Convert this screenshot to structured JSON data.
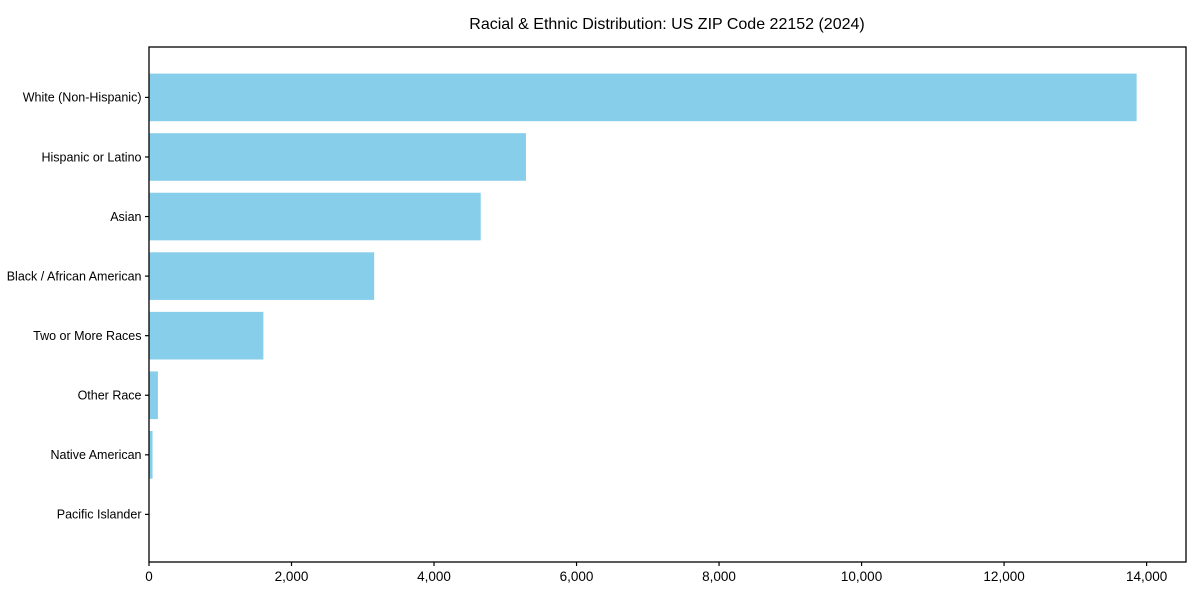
{
  "chart_data": {
    "type": "bar",
    "orientation": "horizontal",
    "title": "Racial & Ethnic Distribution: US ZIP Code 22152 (2024)",
    "categories": [
      "White (Non-Hispanic)",
      "Hispanic or Latino",
      "Asian",
      "Black / African American",
      "Two or More Races",
      "Other Race",
      "Native American",
      "Pacific Islander"
    ],
    "values": [
      13860,
      5290,
      4655,
      3160,
      1605,
      125,
      50,
      0
    ],
    "xlabel": "",
    "ylabel": "",
    "xlim": [
      0,
      14553
    ],
    "xticks": [
      0,
      2000,
      4000,
      6000,
      8000,
      10000,
      12000,
      14000
    ],
    "xtick_labels": [
      "0",
      "2,000",
      "4,000",
      "6,000",
      "8,000",
      "10,000",
      "12,000",
      "14,000"
    ],
    "bar_color": "#87CEEB",
    "axis_color": "#000000",
    "text_color": "#000000",
    "background_color": "#ffffff",
    "grid": false,
    "legend": "none"
  }
}
